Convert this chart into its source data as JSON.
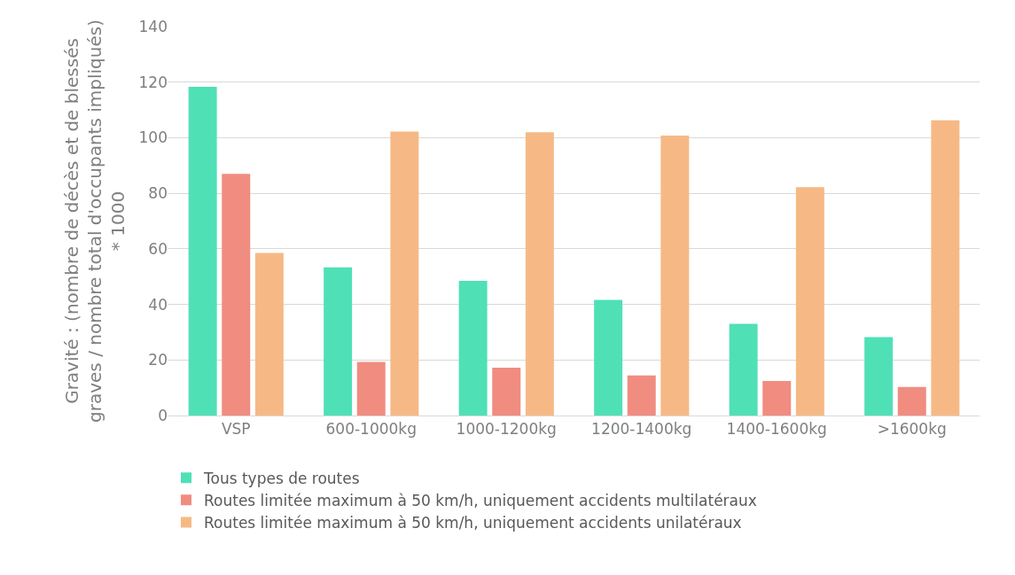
{
  "chart_data": {
    "type": "bar",
    "ylabel": "Gravité : (nombre de décès et de blessés graves / nombre total d'occupants impliqués) * 1000",
    "categories": [
      "VSP",
      "600-1000kg",
      "1000-1200kg",
      "1200-1400kg",
      "1400-1600kg",
      ">1600kg"
    ],
    "series": [
      {
        "name": "Tous types de routes",
        "color": "#4fe0b6",
        "values": [
          118.3,
          53.3,
          48.5,
          41.6,
          33,
          28.2
        ]
      },
      {
        "name": "Routes limitée maximum à 50 km/h, uniquement accidents multilatéraux",
        "color": "#f08c80",
        "values": [
          87,
          19.3,
          17.2,
          14.4,
          12.4,
          10.3
        ]
      },
      {
        "name": "Routes limitée maximum à 50 km/h, uniquement accidents unilatéraux",
        "color": "#f6b985",
        "values": [
          58.5,
          102.2,
          102,
          100.8,
          82.2,
          106.3
        ]
      }
    ],
    "ylim": [
      0,
      140
    ],
    "yticks": [
      0,
      20,
      40,
      60,
      80,
      100,
      120,
      140
    ],
    "grid": "y",
    "legend": "bottom"
  }
}
